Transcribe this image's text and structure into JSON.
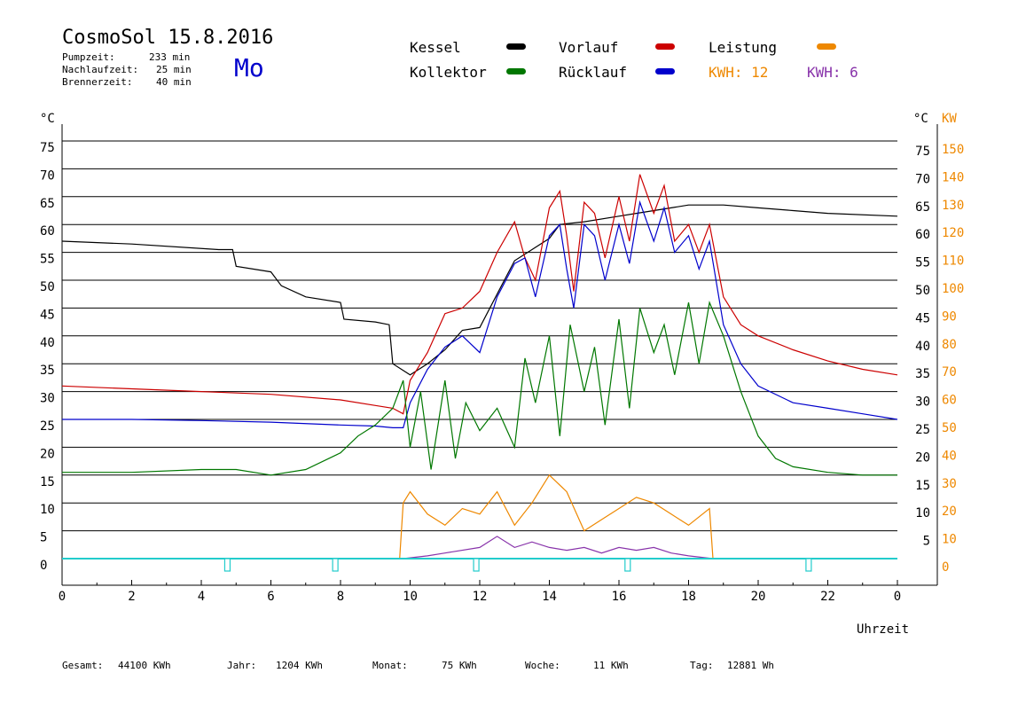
{
  "header": {
    "title": "CosmoSol 15.8.2016",
    "day": "Mo",
    "stats": [
      {
        "label": "Pumpzeit:",
        "value": "233 min"
      },
      {
        "label": "Nachlaufzeit:",
        "value": "25 min"
      },
      {
        "label": "Brennerzeit:",
        "value": "40 min"
      }
    ]
  },
  "legend": {
    "kessel": "Kessel",
    "kollektor": "Kollektor",
    "vorlauf": "Vorlauf",
    "ruecklauf": "Rücklauf",
    "leistung": "Leistung",
    "kwh1": "KWH: 12",
    "kwh2": "KWH: 6"
  },
  "colors": {
    "kessel": "#000000",
    "kollektor": "#007700",
    "vorlauf": "#cc0000",
    "ruecklauf": "#0000cc",
    "leistung": "#ee8800",
    "kwh2": "#8833aa",
    "pump": "#22cccc"
  },
  "footer": {
    "gesamt_label": "Gesamt:",
    "gesamt_value": "44100 KWh",
    "jahr_label": "Jahr:",
    "jahr_value": "1204 KWh",
    "monat_label": "Monat:",
    "monat_value": "75 KWh",
    "woche_label": "Woche:",
    "woche_value": "11 KWh",
    "tag_label": "Tag:",
    "tag_value": "12881 Wh"
  },
  "chart_data": {
    "type": "line",
    "xlabel": "Uhrzeit",
    "ylabel_left": "°C",
    "ylabel_right_1": "°C",
    "ylabel_right_2": "KW",
    "xlim": [
      0,
      24
    ],
    "ylim": [
      0,
      75
    ],
    "x_ticks": [
      "0",
      "2",
      "4",
      "6",
      "8",
      "10",
      "12",
      "14",
      "16",
      "18",
      "20",
      "22",
      "0"
    ],
    "y_ticks_left": [
      "75",
      "70",
      "65",
      "60",
      "55",
      "50",
      "45",
      "40",
      "35",
      "30",
      "25",
      "20",
      "15",
      "10",
      "5",
      "0"
    ],
    "y_ticks_right_c": [
      "75",
      "70",
      "65",
      "60",
      "55",
      "50",
      "45",
      "40",
      "35",
      "30",
      "25",
      "20",
      "15",
      "10",
      "5"
    ],
    "y_ticks_right_kw": [
      "150",
      "140",
      "130",
      "120",
      "110",
      "100",
      "90",
      "80",
      "70",
      "60",
      "50",
      "40",
      "30",
      "20",
      "10",
      "0"
    ],
    "grid": "horizontal",
    "series": [
      {
        "name": "Kessel",
        "color": "#000000",
        "x": [
          0,
          2,
          4.5,
          4.9,
          5.0,
          6.0,
          6.3,
          7.0,
          8.0,
          8.1,
          9.0,
          9.4,
          9.5,
          10.0,
          10.5,
          11.0,
          11.5,
          12.0,
          12.5,
          13.0,
          13.5,
          14.0,
          14.3,
          15.0,
          16.0,
          16.5,
          17.0,
          17.5,
          18.0,
          19.0,
          20.0,
          21.0,
          22.0,
          24.0
        ],
        "y": [
          57,
          56.5,
          55.5,
          55.5,
          52.5,
          51.5,
          49,
          47,
          46,
          43,
          42.5,
          42,
          35,
          33,
          35,
          37.5,
          41,
          41.5,
          47.5,
          53.5,
          55.5,
          57.5,
          60,
          60.5,
          61.5,
          62,
          62.5,
          63,
          63.5,
          63.5,
          63,
          62.5,
          62,
          61.5
        ]
      },
      {
        "name": "Vorlauf",
        "color": "#cc0000",
        "x": [
          0,
          2,
          4,
          6,
          8,
          9,
          9.5,
          9.8,
          10.0,
          10.5,
          11.0,
          11.5,
          12.0,
          12.5,
          13.0,
          13.3,
          13.6,
          14.0,
          14.3,
          14.5,
          14.7,
          15.0,
          15.3,
          15.6,
          16.0,
          16.3,
          16.6,
          17.0,
          17.3,
          17.6,
          18.0,
          18.3,
          18.6,
          19.0,
          19.5,
          20.0,
          21.0,
          22.0,
          23.0,
          24.0
        ],
        "y": [
          31,
          30.5,
          30,
          29.5,
          28.5,
          27.5,
          27,
          26,
          32,
          37,
          44,
          45,
          48,
          55,
          60.5,
          54,
          50,
          63,
          66,
          58,
          48,
          64,
          62,
          54,
          65,
          57,
          69,
          62,
          67,
          57,
          60,
          55,
          60,
          47,
          42,
          40,
          37.5,
          35.5,
          34,
          33
        ]
      },
      {
        "name": "Rücklauf",
        "color": "#0000cc",
        "x": [
          0,
          2,
          4,
          6,
          8,
          9,
          9.5,
          9.8,
          10.0,
          10.5,
          11.0,
          11.5,
          12.0,
          12.5,
          13.0,
          13.3,
          13.6,
          14.0,
          14.3,
          14.5,
          14.7,
          15.0,
          15.3,
          15.6,
          16.0,
          16.3,
          16.6,
          17.0,
          17.3,
          17.6,
          18.0,
          18.3,
          18.6,
          19.0,
          19.5,
          20.0,
          21.0,
          22.0,
          23.0,
          24.0
        ],
        "y": [
          25,
          25,
          24.8,
          24.5,
          24,
          23.8,
          23.5,
          23.5,
          28,
          34,
          38,
          40,
          37,
          47,
          53,
          54,
          47,
          58,
          60,
          52,
          45,
          60,
          58,
          50,
          60,
          53,
          64,
          57,
          63,
          55,
          58,
          52,
          57,
          42,
          35,
          31,
          28,
          27,
          26,
          25
        ]
      },
      {
        "name": "Kollektor",
        "color": "#007700",
        "x": [
          0,
          2,
          4,
          5,
          6,
          7,
          8,
          8.5,
          9,
          9.5,
          9.8,
          10.0,
          10.3,
          10.6,
          11.0,
          11.3,
          11.6,
          12.0,
          12.5,
          13.0,
          13.3,
          13.6,
          14.0,
          14.3,
          14.6,
          15.0,
          15.3,
          15.6,
          16.0,
          16.3,
          16.6,
          17.0,
          17.3,
          17.6,
          18.0,
          18.3,
          18.6,
          19.0,
          19.5,
          20.0,
          20.5,
          21.0,
          22.0,
          23.0,
          24.0
        ],
        "y": [
          15.5,
          15.5,
          16,
          16,
          15,
          16,
          19,
          22,
          24,
          27,
          32,
          20,
          30,
          16,
          32,
          18,
          28,
          23,
          27,
          20,
          36,
          28,
          40,
          22,
          42,
          30,
          38,
          24,
          43,
          27,
          45,
          37,
          42,
          33,
          46,
          35,
          46,
          40,
          30,
          22,
          18,
          16.5,
          15.5,
          15,
          15
        ]
      },
      {
        "name": "Leistung",
        "color": "#ee8800",
        "x": [
          0,
          9.7,
          9.8,
          10.0,
          10.5,
          11.0,
          11.5,
          12.0,
          12.5,
          13.0,
          13.5,
          14.0,
          14.5,
          15.0,
          15.5,
          16.0,
          16.5,
          17.0,
          17.5,
          18.0,
          18.6,
          18.7,
          24.0
        ],
        "y": [
          0,
          0,
          10,
          12,
          8,
          6,
          9,
          8,
          12,
          6,
          10,
          15,
          12,
          5,
          7,
          9,
          11,
          10,
          8,
          6,
          9,
          0,
          0
        ]
      },
      {
        "name": "KWH: 6",
        "color": "#8833aa",
        "x": [
          0,
          9.8,
          10.5,
          11.0,
          12.0,
          12.5,
          13.0,
          13.5,
          14.0,
          14.5,
          15.0,
          15.5,
          16.0,
          16.5,
          17.0,
          17.5,
          18.0,
          18.7,
          24.0
        ],
        "y": [
          0,
          0,
          0.5,
          1,
          2,
          4,
          2,
          3,
          2,
          1.5,
          2,
          1,
          2,
          1.5,
          2,
          1,
          0.5,
          0,
          0
        ]
      }
    ],
    "pump_markers_hours": [
      4.75,
      7.85,
      11.9,
      16.25,
      21.45
    ]
  }
}
